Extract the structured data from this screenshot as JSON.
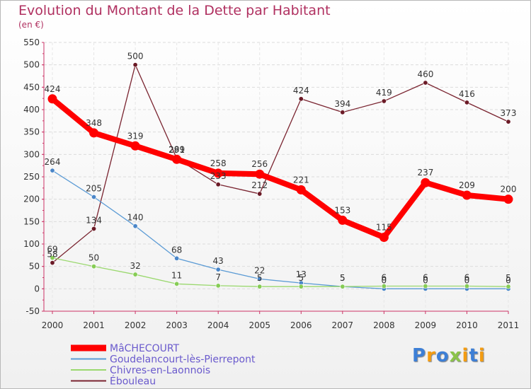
{
  "title": "Evolution du Montant de la Dette par Habitant",
  "unit": "(en €)",
  "logo": {
    "text": "Proxiti",
    "letters": [
      "P",
      "r",
      "o",
      "x",
      "i",
      "t",
      "i"
    ],
    "colors": [
      "#3d7fd6",
      "#f39c12",
      "#3d7fd6",
      "#8bc34a",
      "#f39c12",
      "#3d7fd6",
      "#f39c12"
    ]
  },
  "chart_data": {
    "type": "line",
    "x": [
      "2000",
      "2001",
      "2002",
      "2003",
      "2004",
      "2005",
      "2006",
      "2007",
      "2008",
      "2009",
      "2010",
      "2011"
    ],
    "ylim": [
      -50,
      550
    ],
    "yticks": [
      -50,
      0,
      50,
      100,
      150,
      200,
      250,
      300,
      350,
      400,
      450,
      500,
      550
    ],
    "grid": true,
    "legend_placement": "bottom-left",
    "series": [
      {
        "name": "MâCHECOURT",
        "color": "#ff0000",
        "emphasis": true,
        "values": [
          424,
          348,
          319,
          289,
          258,
          256,
          221,
          153,
          115,
          237,
          209,
          200
        ]
      },
      {
        "name": "Goudelancourt-lès-Pierrepont",
        "color": "#5b9bd5",
        "emphasis": false,
        "values": [
          264,
          205,
          140,
          68,
          43,
          22,
          13,
          5,
          0,
          0,
          0,
          0
        ]
      },
      {
        "name": "Chivres-en-Laonnois",
        "color": "#9ad86e",
        "emphasis": false,
        "values": [
          69,
          50,
          32,
          11,
          7,
          5,
          5,
          5,
          6,
          6,
          6,
          5
        ]
      },
      {
        "name": "Éboulea u",
        "color": "#7a2430",
        "emphasis": false,
        "values": [
          58,
          134,
          500,
          291,
          233,
          212,
          424,
          394,
          419,
          460,
          416,
          373
        ]
      }
    ]
  }
}
